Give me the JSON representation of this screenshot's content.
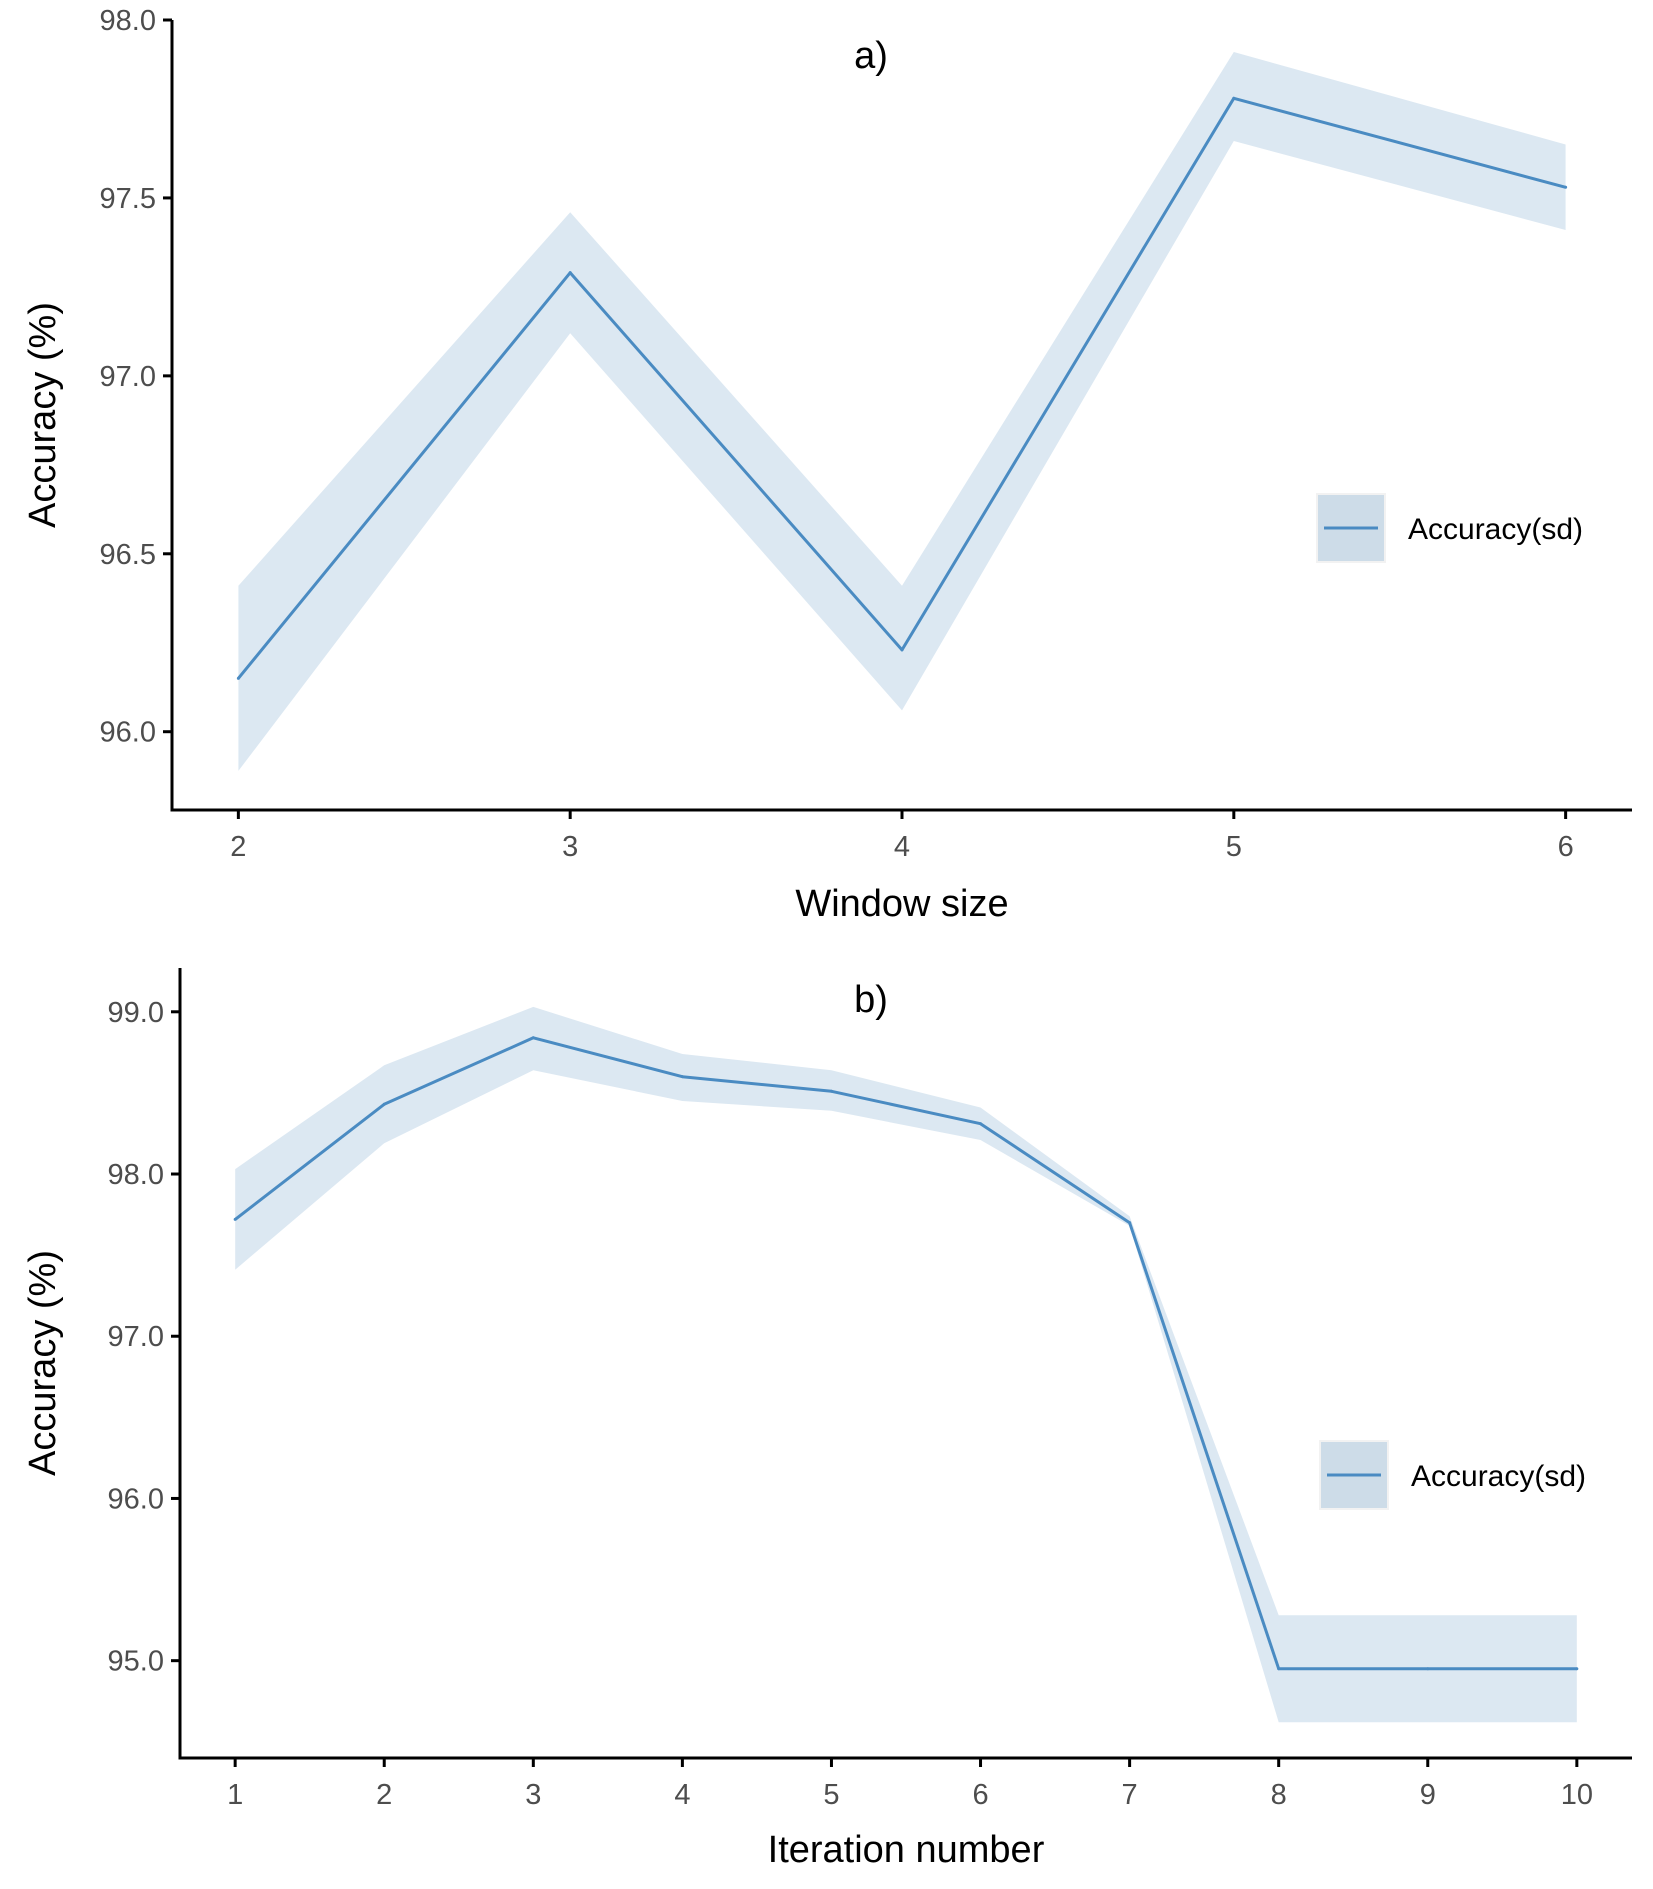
{
  "colors": {
    "line": "#4A8BC2",
    "ribbon": "#DCE8F2",
    "legend_key_fill": "#CDDCE8",
    "axis": "#000000",
    "tick_text": "#4d4d4d"
  },
  "chart_data": [
    {
      "type": "line",
      "panel_label": "a)",
      "xlabel": "Window size",
      "ylabel": "Accuracy (%)",
      "x": [
        2,
        3,
        4,
        5,
        6
      ],
      "xticks": [
        "2",
        "3",
        "4",
        "5",
        "6"
      ],
      "yticks": [
        "96.0",
        "96.5",
        "97.0",
        "97.5",
        "98.0"
      ],
      "xlim": [
        1.8,
        6.2
      ],
      "ylim": [
        95.78,
        98.0
      ],
      "series": [
        {
          "name": "Accuracy(sd)",
          "values": [
            96.15,
            97.29,
            96.23,
            97.78,
            97.53
          ],
          "lower": [
            95.89,
            97.12,
            96.06,
            97.66,
            97.41
          ],
          "upper": [
            96.41,
            97.46,
            96.41,
            97.91,
            97.65
          ]
        }
      ],
      "legend": {
        "position": "right",
        "labels": [
          "Accuracy(sd)"
        ]
      },
      "grid": false
    },
    {
      "type": "line",
      "panel_label": "b)",
      "xlabel": "Iteration number",
      "ylabel": "Accuracy (%)",
      "x": [
        1,
        2,
        3,
        4,
        5,
        6,
        7,
        8,
        9,
        10
      ],
      "xticks": [
        "1",
        "2",
        "3",
        "4",
        "5",
        "6",
        "7",
        "8",
        "9",
        "10"
      ],
      "yticks": [
        "95.0",
        "96.0",
        "97.0",
        "98.0",
        "99.0"
      ],
      "xlim": [
        0.63,
        10.37
      ],
      "ylim": [
        94.4,
        99.27
      ],
      "series": [
        {
          "name": "Accuracy(sd)",
          "values": [
            97.72,
            98.43,
            98.84,
            98.6,
            98.51,
            98.31,
            97.7,
            94.95,
            94.95,
            94.95
          ],
          "lower": [
            97.41,
            98.19,
            98.64,
            98.45,
            98.39,
            98.21,
            97.68,
            94.62,
            94.62,
            94.62
          ],
          "upper": [
            98.03,
            98.67,
            99.03,
            98.74,
            98.64,
            98.41,
            97.74,
            95.28,
            95.28,
            95.28
          ]
        }
      ],
      "legend": {
        "position": "right",
        "labels": [
          "Accuracy(sd)"
        ]
      },
      "grid": false
    }
  ]
}
